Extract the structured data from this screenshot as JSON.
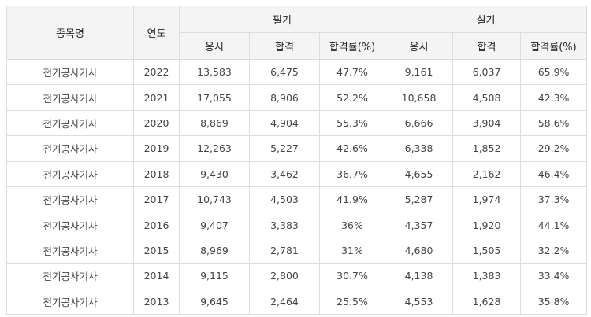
{
  "header": {
    "subject": "종목명",
    "year": "연도",
    "written": "필기",
    "practical": "실기",
    "applicants": "응시",
    "passed": "합격",
    "pass_rate": "합격률(%)"
  },
  "rows": [
    {
      "name": "전기공사기사",
      "year": "2022",
      "w_apply": "13,583",
      "w_pass": "6,475",
      "w_rate": "47.7%",
      "p_apply": "9,161",
      "p_pass": "6,037",
      "p_rate": "65.9%"
    },
    {
      "name": "전기공사기사",
      "year": "2021",
      "w_apply": "17,055",
      "w_pass": "8,906",
      "w_rate": "52.2%",
      "p_apply": "10,658",
      "p_pass": "4,508",
      "p_rate": "42.3%"
    },
    {
      "name": "전기공사기사",
      "year": "2020",
      "w_apply": "8,869",
      "w_pass": "4,904",
      "w_rate": "55.3%",
      "p_apply": "6,666",
      "p_pass": "3,904",
      "p_rate": "58.6%"
    },
    {
      "name": "전기공사기사",
      "year": "2019",
      "w_apply": "12,263",
      "w_pass": "5,227",
      "w_rate": "42.6%",
      "p_apply": "6,338",
      "p_pass": "1,852",
      "p_rate": "29.2%"
    },
    {
      "name": "전기공사기사",
      "year": "2018",
      "w_apply": "9,430",
      "w_pass": "3,462",
      "w_rate": "36.7%",
      "p_apply": "4,655",
      "p_pass": "2,162",
      "p_rate": "46.4%"
    },
    {
      "name": "전기공사기사",
      "year": "2017",
      "w_apply": "10,743",
      "w_pass": "4,503",
      "w_rate": "41.9%",
      "p_apply": "5,287",
      "p_pass": "1,974",
      "p_rate": "37.3%"
    },
    {
      "name": "전기공사기사",
      "year": "2016",
      "w_apply": "9,407",
      "w_pass": "3,383",
      "w_rate": "36%",
      "p_apply": "4,357",
      "p_pass": "1,920",
      "p_rate": "44.1%"
    },
    {
      "name": "전기공사기사",
      "year": "2015",
      "w_apply": "8,969",
      "w_pass": "2,781",
      "w_rate": "31%",
      "p_apply": "4,680",
      "p_pass": "1,505",
      "p_rate": "32.2%"
    },
    {
      "name": "전기공사기사",
      "year": "2014",
      "w_apply": "9,115",
      "w_pass": "2,800",
      "w_rate": "30.7%",
      "p_apply": "4,138",
      "p_pass": "1,383",
      "p_rate": "33.4%"
    },
    {
      "name": "전기공사기사",
      "year": "2013",
      "w_apply": "9,645",
      "w_pass": "2,464",
      "w_rate": "25.5%",
      "p_apply": "4,553",
      "p_pass": "1,628",
      "p_rate": "35.8%"
    }
  ]
}
